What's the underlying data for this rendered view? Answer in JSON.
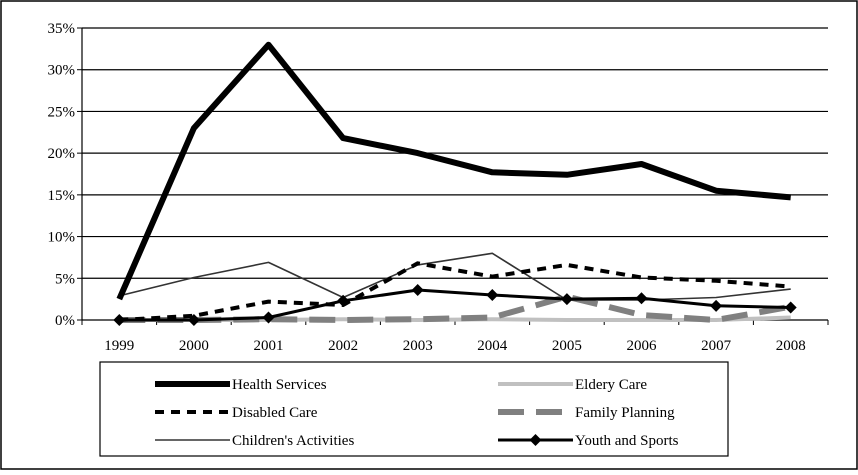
{
  "chart_data": {
    "type": "line",
    "title": "",
    "xlabel": "",
    "ylabel": "",
    "categories": [
      "1999",
      "2000",
      "2001",
      "2002",
      "2003",
      "2004",
      "2005",
      "2006",
      "2007",
      "2008"
    ],
    "ylim": [
      0,
      35
    ],
    "yticks": [
      0,
      5,
      10,
      15,
      20,
      25,
      30,
      35
    ],
    "ytick_labels": [
      "0%",
      "5%",
      "10%",
      "15%",
      "20%",
      "25%",
      "30%",
      "35%"
    ],
    "grid": "horizontal",
    "legend_position": "bottom",
    "series": [
      {
        "name": "Health Services",
        "values": [
          2.5,
          23.0,
          33.0,
          21.8,
          20.0,
          17.7,
          17.4,
          18.7,
          15.5,
          14.7
        ],
        "color": "#000000",
        "style": "thick-solid"
      },
      {
        "name": "Eldery Care",
        "values": [
          0.0,
          0.0,
          0.0,
          0.1,
          0.0,
          0.1,
          0.0,
          0.0,
          0.0,
          0.3
        ],
        "color": "#c0c0c0",
        "style": "solid"
      },
      {
        "name": "Disabled Care",
        "values": [
          0.0,
          0.5,
          2.2,
          1.8,
          6.8,
          5.2,
          6.6,
          5.1,
          4.7,
          4.0
        ],
        "color": "#000000",
        "style": "dashed"
      },
      {
        "name": "Family Planning",
        "values": [
          0.0,
          0.0,
          0.1,
          0.0,
          0.1,
          0.3,
          2.8,
          0.6,
          0.0,
          1.6
        ],
        "color": "#808080",
        "style": "long-dash"
      },
      {
        "name": "Children's Activities",
        "values": [
          2.9,
          5.1,
          6.9,
          2.7,
          6.6,
          8.0,
          2.4,
          2.4,
          2.7,
          3.7
        ],
        "color": "#333333",
        "style": "thin-solid"
      },
      {
        "name": "Youth and Sports",
        "values": [
          0.0,
          0.0,
          0.3,
          2.3,
          3.6,
          3.0,
          2.5,
          2.6,
          1.7,
          1.5
        ],
        "color": "#000000",
        "style": "solid-diamond"
      }
    ]
  }
}
